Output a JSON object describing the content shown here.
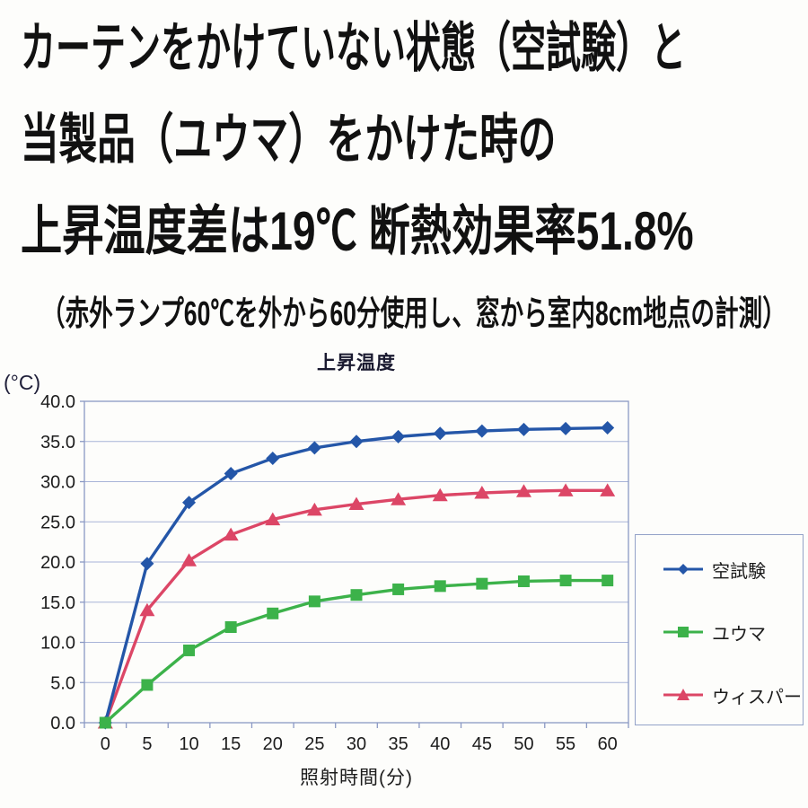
{
  "header": {
    "line1": "カーテンをかけていない状態（空試験）と",
    "line2": "当製品（ユウマ）をかけた時の",
    "line3": "上昇温度差は19℃ 断熱効果率51.8%",
    "note": "（赤外ランプ60℃を外から60分使用し、窓から室内8cm地点の計測）"
  },
  "chart_data": {
    "type": "line",
    "title": "上昇温度",
    "y_unit_label": "(°C)",
    "xlabel": "照射時間(分)",
    "ylabel": "",
    "ylim": [
      0,
      40
    ],
    "grid": true,
    "legend_position": "right",
    "x": [
      0,
      5,
      10,
      15,
      20,
      25,
      30,
      35,
      40,
      45,
      50,
      55,
      60
    ],
    "y_ticks": [
      0,
      5,
      10,
      15,
      20,
      25,
      30,
      35,
      40
    ],
    "y_tick_labels": [
      "0.0",
      "5.0",
      "10.0",
      "15.0",
      "20.0",
      "25.0",
      "30.0",
      "35.0",
      "40.0"
    ],
    "series": [
      {
        "name": "空試験",
        "marker": "diamond",
        "color": "#2456a8",
        "values": [
          0,
          19.8,
          27.4,
          31.0,
          32.9,
          34.2,
          35.0,
          35.6,
          36.0,
          36.3,
          36.5,
          36.6,
          36.7
        ]
      },
      {
        "name": "ユウマ",
        "marker": "square",
        "color": "#3cb24a",
        "values": [
          0,
          4.7,
          9.0,
          11.9,
          13.6,
          15.1,
          15.9,
          16.6,
          17.0,
          17.3,
          17.6,
          17.7,
          17.7
        ]
      },
      {
        "name": "ウィスパー",
        "marker": "triangle",
        "color": "#dc4666",
        "values": [
          0,
          14.0,
          20.2,
          23.4,
          25.3,
          26.5,
          27.2,
          27.8,
          28.3,
          28.6,
          28.8,
          28.9,
          28.9
        ]
      }
    ],
    "draw_order": [
      2,
      0,
      1
    ]
  },
  "colors": {
    "grid": "#a8b4d8",
    "axis": "#8b99c4",
    "tick_text": "#1c1c1c",
    "legend_border": "#93a2c8",
    "headline_text": "#111111"
  }
}
